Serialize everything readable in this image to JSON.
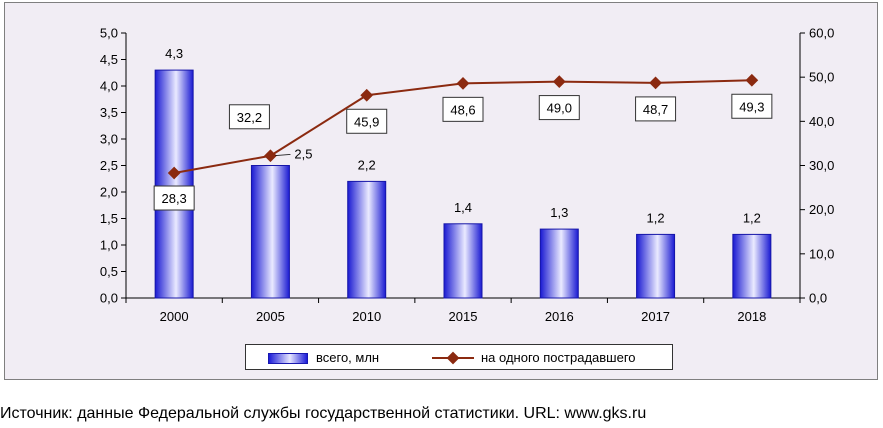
{
  "chart_data": {
    "type": "bar",
    "categories": [
      "2000",
      "2005",
      "2010",
      "2015",
      "2016",
      "2017",
      "2018"
    ],
    "series": [
      {
        "name": "всего, млн",
        "type": "bar",
        "axis": "left",
        "values": [
          4.3,
          2.5,
          2.2,
          1.4,
          1.3,
          1.2,
          1.2
        ],
        "labels": [
          "4,3",
          "2,5",
          "2,2",
          "1,4",
          "1,3",
          "1,2",
          "1,2"
        ],
        "color": "#1c1cd8"
      },
      {
        "name": "на одного пострадавшего",
        "type": "line",
        "axis": "right",
        "values": [
          28.3,
          32.2,
          45.9,
          48.6,
          49.0,
          48.7,
          49.3
        ],
        "labels": [
          "28,3",
          "32,2",
          "45,9",
          "48,6",
          "49,0",
          "48,7",
          "49,3"
        ],
        "color": "#8b2a10"
      }
    ],
    "ylim_left": [
      0,
      5
    ],
    "ylim_right": [
      0,
      60
    ],
    "left_ticks": [
      "0,0",
      "0,5",
      "1,0",
      "1,5",
      "2,0",
      "2,5",
      "3,0",
      "3,5",
      "4,0",
      "4,5",
      "5,0"
    ],
    "right_ticks": [
      "0,0",
      "10,0",
      "20,0",
      "30,0",
      "40,0",
      "50,0",
      "60,0"
    ],
    "grid": false,
    "legend_position": "bottom"
  },
  "legend": {
    "bar_label": "всего, млн",
    "line_label": "на одного пострадавшего"
  },
  "source": "Источник: данные Федеральной службы государственной статистики. URL: www.gks.ru"
}
